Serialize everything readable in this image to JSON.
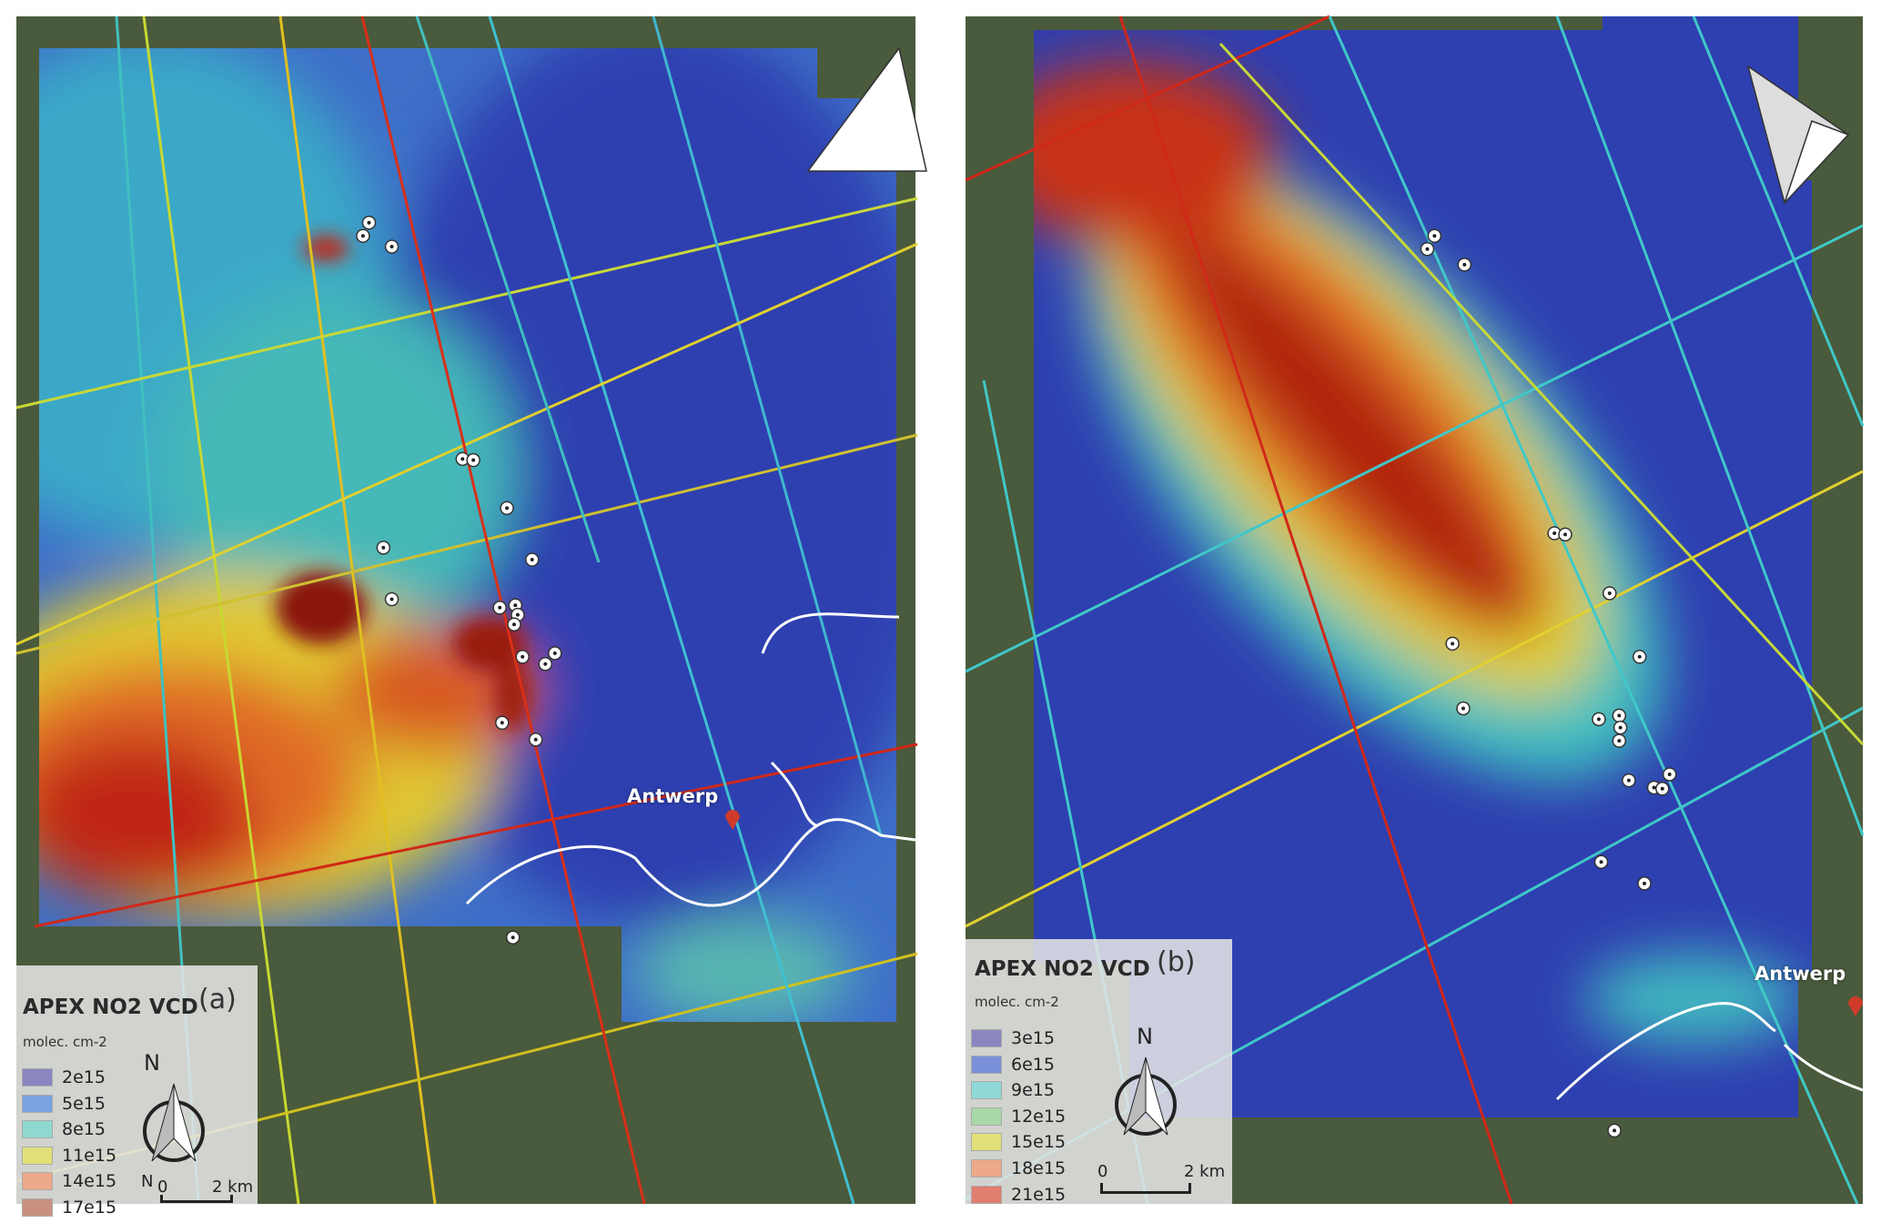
{
  "panels": [
    {
      "id": "a",
      "legend": {
        "title": "APEX NO2 VCD",
        "tag": "(a)",
        "unit": "molec. cm-2",
        "classes": [
          {
            "label": "2e15",
            "color": "#8a86c0"
          },
          {
            "label": "5e15",
            "color": "#7aa2e0"
          },
          {
            "label": "8e15",
            "color": "#8fd8cf"
          },
          {
            "label": "11e15",
            "color": "#e2e078"
          },
          {
            "label": "14e15",
            "color": "#eea88a"
          },
          {
            "label": "17e15",
            "color": "#c99080"
          }
        ],
        "north": "N",
        "scale": {
          "start": "0",
          "end": "2 km"
        }
      },
      "city": "Antwerp"
    },
    {
      "id": "b",
      "legend": {
        "title": "APEX NO2 VCD",
        "tag": "(b)",
        "unit": "molec. cm-2",
        "classes": [
          {
            "label": "3e15",
            "color": "#8a86c0"
          },
          {
            "label": "6e15",
            "color": "#7a90d8"
          },
          {
            "label": "9e15",
            "color": "#8fd8d8"
          },
          {
            "label": "12e15",
            "color": "#a8d8a8"
          },
          {
            "label": "15e15",
            "color": "#e2e078"
          },
          {
            "label": "18e15",
            "color": "#eea88a"
          },
          {
            "label": "21e15",
            "color": "#e07e70"
          }
        ],
        "north": "N",
        "scale": {
          "start": "0",
          "end": "2 km"
        }
      },
      "city": "Antwerp"
    }
  ],
  "colors": {
    "low": "#2b3fb0",
    "mid": "#3fc0c0",
    "high": "#e8d830",
    "max": "#b02010",
    "river": "#ffffff",
    "station": "#ffffff",
    "city_pin": "#d03a2a"
  }
}
